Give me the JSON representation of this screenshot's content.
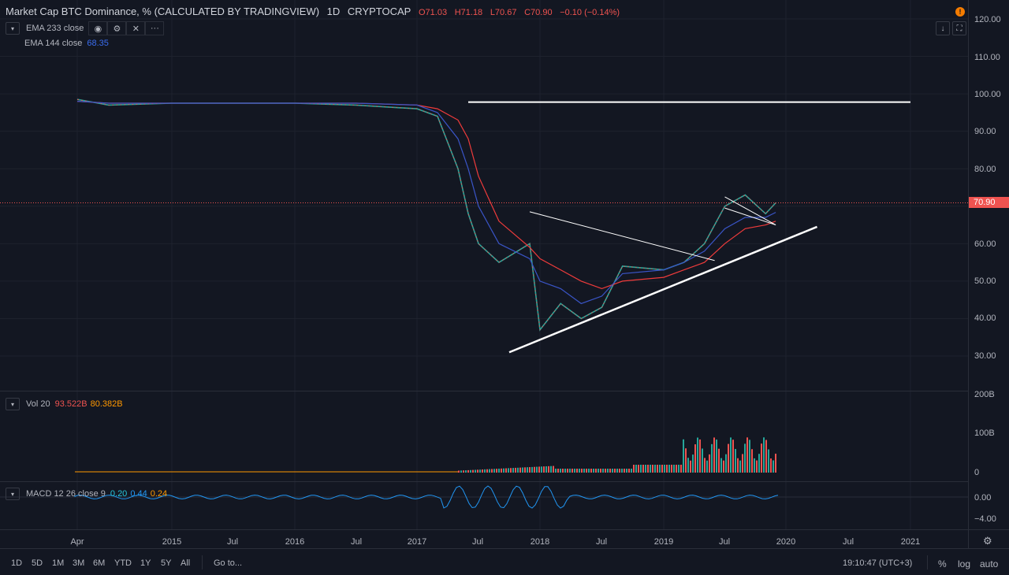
{
  "header": {
    "symbol_title": "Market Cap BTC Dominance, % (CALCULATED BY TRADINGVIEW)",
    "interval": "1D",
    "exchange": "CRYPTOCAP",
    "open": "O71.03",
    "high": "H71.18",
    "low": "L70.67",
    "close": "C70.90",
    "change": "−0.10 (−0.14%)"
  },
  "indicators": {
    "ema233": {
      "label": "EMA 233 close"
    },
    "ema144": {
      "label": "EMA 144 close",
      "value": "68.35"
    },
    "volume": {
      "label": "Vol 20",
      "value1": "93.522B",
      "value2": "80.382B"
    },
    "macd": {
      "label": "MACD 12 26 close 9",
      "v1": "0.20",
      "v2": "0.44",
      "v3": "0.24"
    }
  },
  "price_axis": {
    "labels": [
      "120.00",
      "110.00",
      "100.00",
      "90.00",
      "80.00",
      "70.00",
      "60.00",
      "50.00",
      "40.00",
      "30.00"
    ],
    "current_price": "70.90"
  },
  "volume_axis": {
    "labels": [
      "200B",
      "100B",
      "0"
    ]
  },
  "macd_axis": {
    "labels": [
      "0.00",
      "−4.00"
    ]
  },
  "time_axis": {
    "labels": [
      "Apr",
      "2015",
      "Jul",
      "2016",
      "Jul",
      "2017",
      "Jul",
      "2018",
      "Jul",
      "2019",
      "Jul",
      "2020",
      "Jul",
      "2021"
    ]
  },
  "bottom_bar": {
    "ranges": [
      "1D",
      "5D",
      "1M",
      "3M",
      "6M",
      "YTD",
      "1Y",
      "5Y",
      "All"
    ],
    "goto": "Go to...",
    "clock": "19:10:47 (UTC+3)",
    "percent": "%",
    "log": "log",
    "auto": "auto"
  },
  "colors": {
    "background": "#131722",
    "up": "#26a69a",
    "down": "#ef5350",
    "ema233": "#ef3b3b",
    "ema144": "#3a55c8",
    "trendline": "#ffffff"
  },
  "chart_data": {
    "type": "line",
    "title": "Market Cap BTC Dominance, % (CALCULATED BY TRADINGVIEW)",
    "xlabel": "",
    "ylabel": "",
    "ylim": [
      25,
      122
    ],
    "x": [
      "2014-04",
      "2014-07",
      "2015-01",
      "2015-07",
      "2016-01",
      "2016-07",
      "2017-01",
      "2017-03",
      "2017-05",
      "2017-06",
      "2017-07",
      "2017-09",
      "2017-12",
      "2018-01",
      "2018-03",
      "2018-05",
      "2018-07",
      "2018-09",
      "2019-01",
      "2019-03",
      "2019-05",
      "2019-07",
      "2019-09",
      "2019-11",
      "2019-12"
    ],
    "series": [
      {
        "name": "Price",
        "values": [
          98.5,
          97,
          97.5,
          97.5,
          97.5,
          97,
          96,
          94,
          80,
          68,
          60,
          55,
          60,
          37,
          44,
          40,
          43,
          54,
          53,
          55,
          60,
          70,
          73,
          68,
          70.9
        ]
      },
      {
        "name": "EMA 233",
        "values": [
          98,
          97.5,
          97.5,
          97.5,
          97.5,
          97.5,
          97,
          96,
          93,
          88,
          78,
          66,
          59,
          56,
          53,
          50,
          48,
          50,
          51,
          53,
          55,
          60,
          64,
          65,
          66
        ]
      },
      {
        "name": "EMA 144",
        "values": [
          98,
          97.5,
          97.5,
          97.5,
          97.5,
          97.5,
          97,
          95,
          88,
          80,
          70,
          60,
          56,
          50,
          48,
          44,
          46,
          52,
          53,
          55,
          58,
          64,
          67,
          67,
          68.35
        ]
      }
    ],
    "volume_ylim": [
      0,
      200
    ],
    "macd_ylim": [
      -6,
      3
    ],
    "drawings": "horizontal line near 98, descending resistance line, ascending support trendline"
  }
}
